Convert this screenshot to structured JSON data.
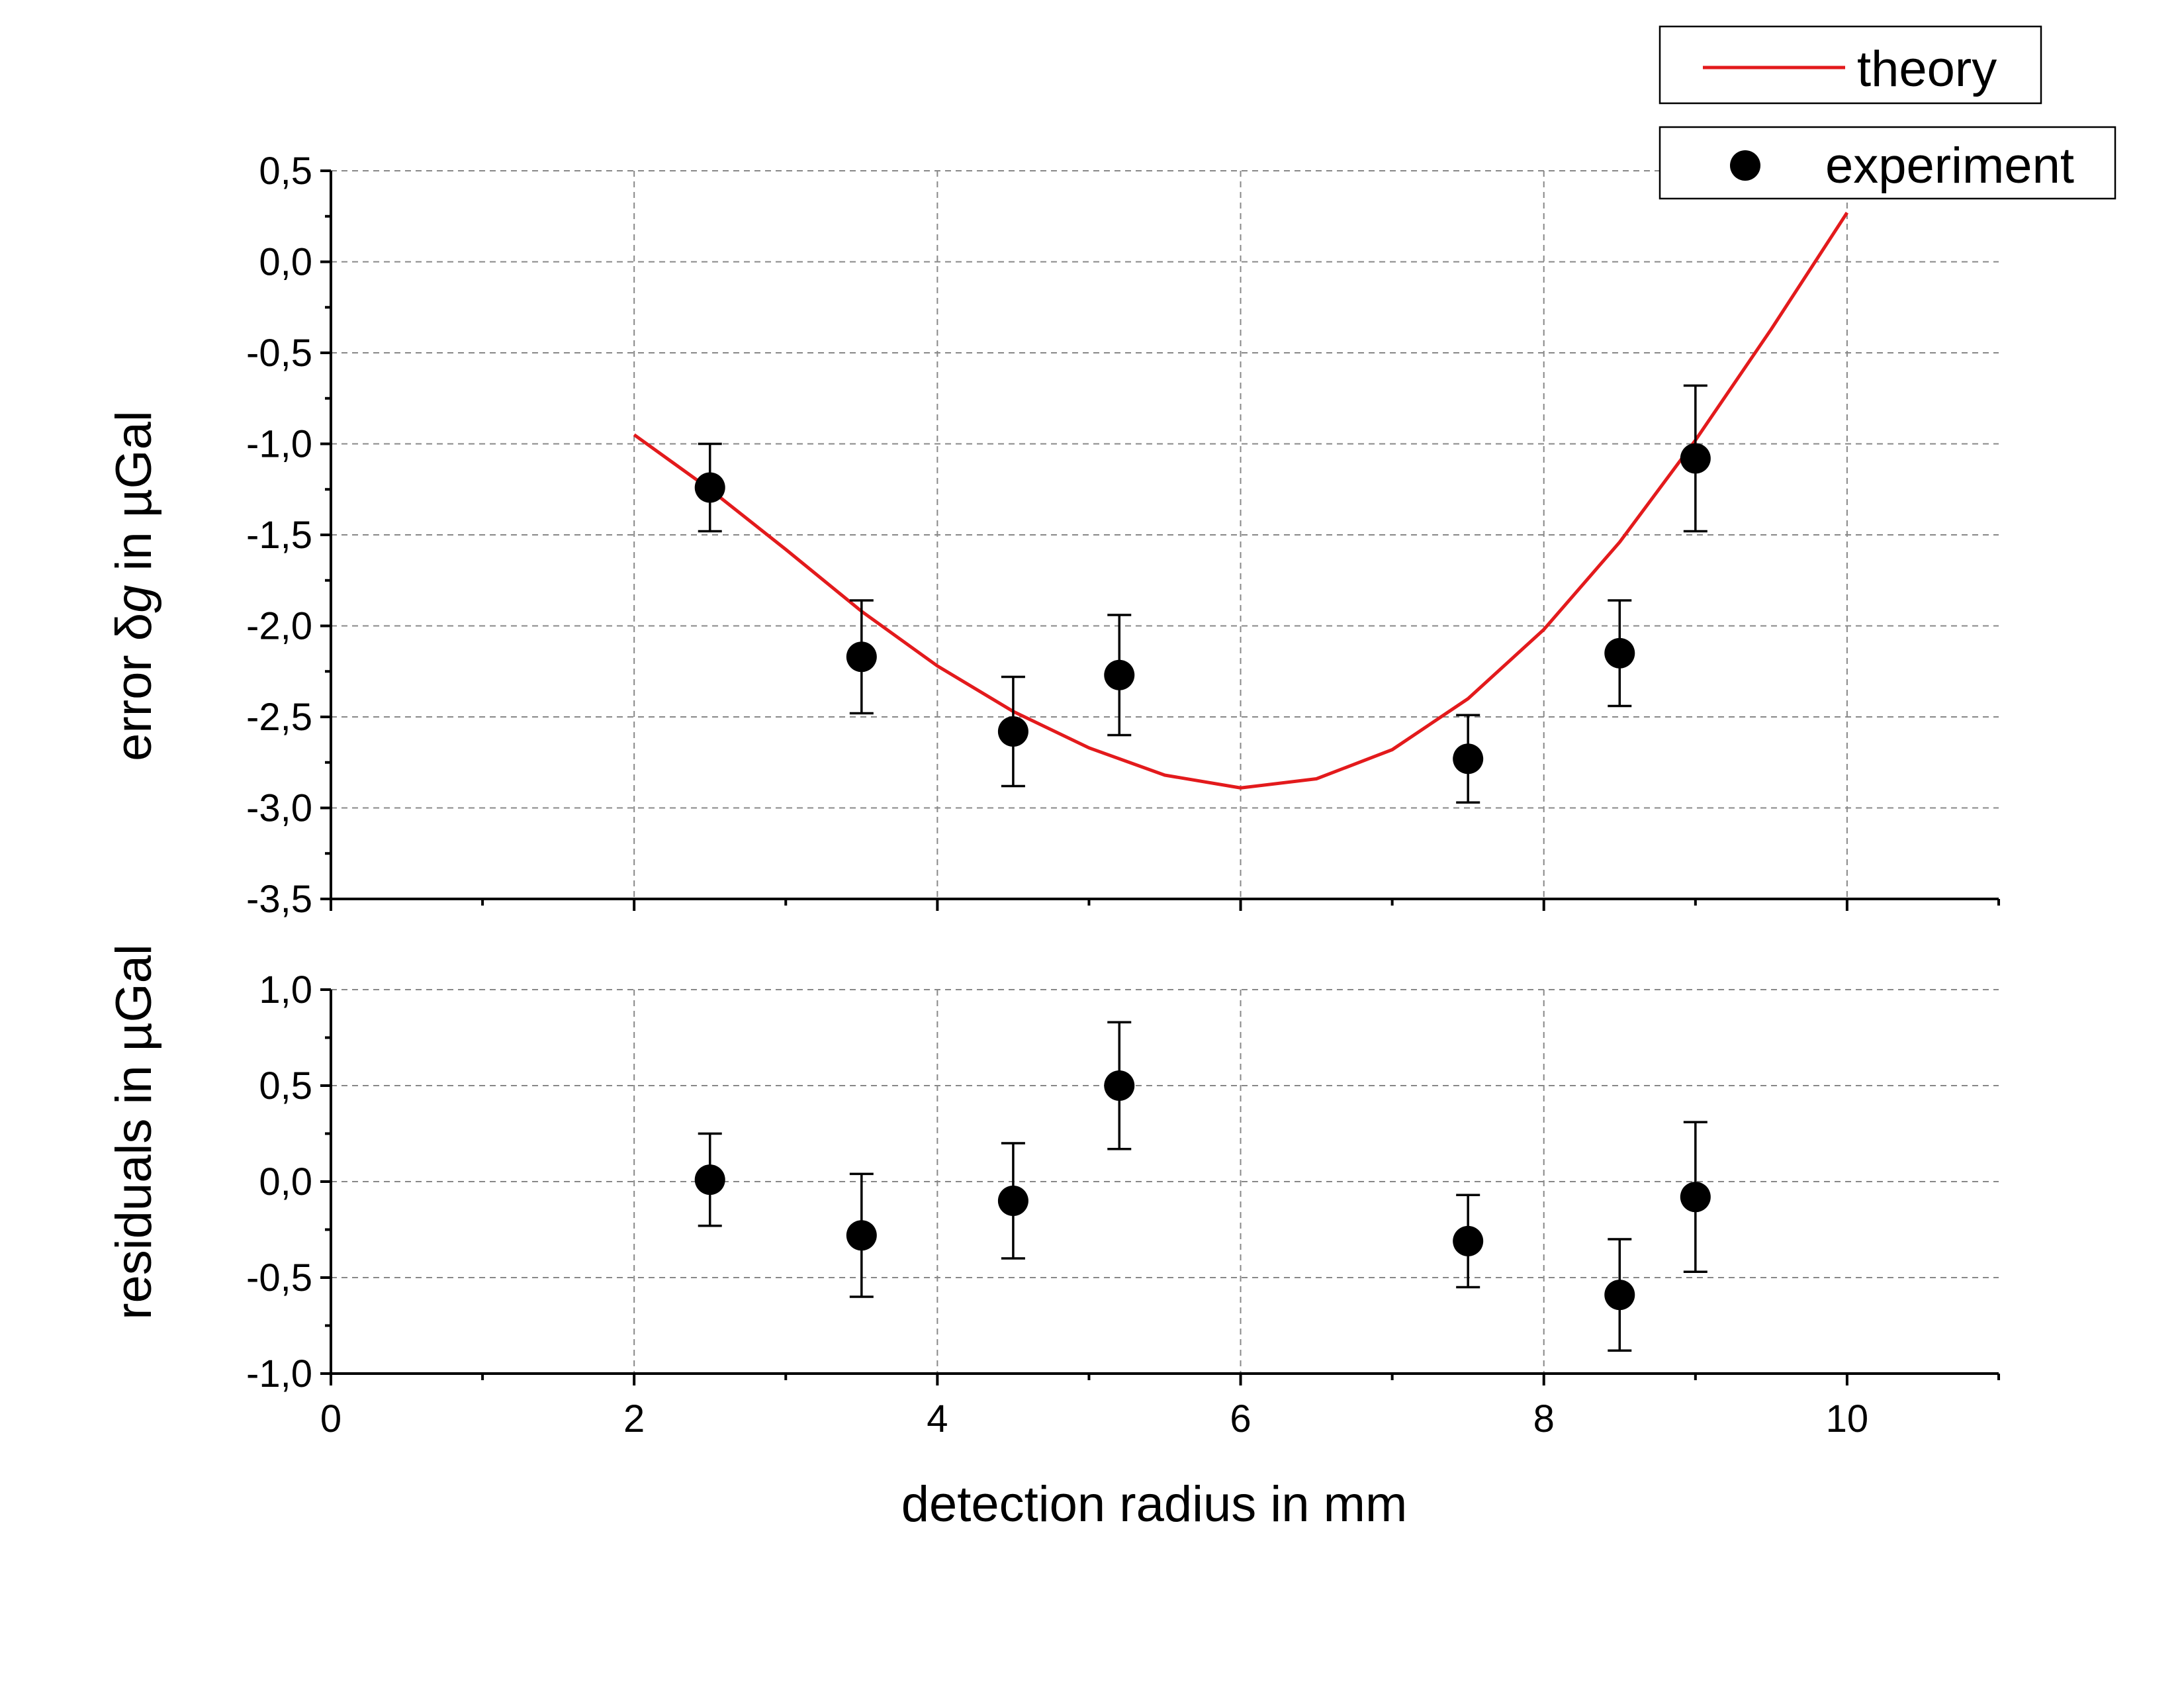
{
  "chart_data": [
    {
      "panel": "top",
      "type": "line+scatter",
      "xlim": [
        0,
        11
      ],
      "ylim": [
        -3.5,
        0.5
      ],
      "x_ticks": [
        2,
        4,
        6,
        8,
        10
      ],
      "y_ticks": [
        0.5,
        0.0,
        -0.5,
        -1.0,
        -1.5,
        -2.0,
        -2.5,
        -3.0,
        -3.5
      ],
      "y_tick_labels": [
        "0,5",
        "0,0",
        "-0,5",
        "-1,0",
        "-1,5",
        "-2,0",
        "-2,5",
        "-3,0",
        "-3,5"
      ],
      "ylabel": {
        "prefix": "error δ",
        "var": "g",
        "suffix": " in µGal"
      },
      "grid": true,
      "series": [
        {
          "name": "theory",
          "type": "line",
          "color": "#e31a1c",
          "x": [
            2.0,
            2.5,
            3.0,
            3.5,
            4.0,
            4.5,
            5.0,
            5.5,
            6.0,
            6.5,
            7.0,
            7.5,
            8.0,
            8.5,
            9.0,
            9.5,
            10.0
          ],
          "y": [
            -0.95,
            -1.25,
            -1.58,
            -1.92,
            -2.22,
            -2.47,
            -2.67,
            -2.82,
            -2.89,
            -2.84,
            -2.68,
            -2.4,
            -2.02,
            -1.54,
            -0.98,
            -0.37,
            0.27
          ]
        },
        {
          "name": "experiment",
          "type": "scatter",
          "color": "#000000",
          "x": [
            2.5,
            3.5,
            4.5,
            5.2,
            7.5,
            8.5,
            9.0
          ],
          "y": [
            -1.24,
            -2.17,
            -2.58,
            -2.27,
            -2.73,
            -2.15,
            -1.08
          ],
          "err": [
            0.24,
            0.31,
            0.3,
            0.33,
            0.24,
            0.29,
            0.4
          ]
        }
      ]
    },
    {
      "panel": "bottom",
      "type": "scatter",
      "xlim": [
        0,
        11
      ],
      "ylim": [
        -1.0,
        1.0
      ],
      "x_ticks": [
        0,
        2,
        4,
        6,
        8,
        10
      ],
      "x_tick_labels": [
        "0",
        "2",
        "4",
        "6",
        "8",
        "10"
      ],
      "y_ticks": [
        1.0,
        0.5,
        0.0,
        -0.5,
        -1.0
      ],
      "y_tick_labels": [
        "1,0",
        "0,5",
        "0,0",
        "-0,5",
        "-1,0"
      ],
      "ylabel": "residuals in µGal",
      "xlabel": "detection radius in mm",
      "grid": true,
      "series": [
        {
          "name": "residuals",
          "type": "scatter",
          "color": "#000000",
          "x": [
            2.5,
            3.5,
            4.5,
            5.2,
            7.5,
            8.5,
            9.0
          ],
          "y": [
            0.01,
            -0.28,
            -0.1,
            0.5,
            -0.31,
            -0.59,
            -0.08
          ],
          "err": [
            0.24,
            0.32,
            0.3,
            0.33,
            0.24,
            0.29,
            0.39
          ]
        }
      ]
    }
  ],
  "legend": {
    "items": [
      {
        "label": "theory",
        "kind": "line",
        "color": "#e31a1c"
      },
      {
        "label": "experiment",
        "kind": "marker",
        "color": "#000000"
      }
    ]
  }
}
